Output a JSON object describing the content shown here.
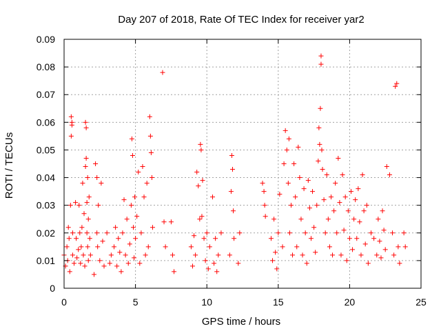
{
  "chart_data": {
    "type": "scatter",
    "title": "Day 207 of 2018, Rate Of TEC Index for receiver yar2",
    "xlabel": "GPS time / hours",
    "ylabel": "ROTI / TECUs",
    "xlim": [
      0,
      25
    ],
    "ylim": [
      0,
      0.09
    ],
    "grid": true,
    "marker": "plus",
    "colors": {
      "points": "#ff0000",
      "grid": "#a0a0a0",
      "frame": "#000000"
    },
    "xticks": [
      0,
      5,
      10,
      15,
      20,
      25
    ],
    "xtick_labels": [
      "0",
      "5",
      "10",
      "15",
      "20",
      "25"
    ],
    "yticks": [
      0,
      0.01,
      0.02,
      0.03,
      0.04,
      0.05,
      0.06,
      0.07,
      0.08,
      0.09
    ],
    "ytick_labels": [
      "0",
      "0.01",
      "0.02",
      "0.03",
      "0.04",
      "0.05",
      "0.06",
      "0.07",
      "0.08",
      "0.09"
    ],
    "x": [
      0.0,
      0.1,
      0.2,
      0.25,
      0.3,
      0.35,
      0.4,
      0.45,
      0.5,
      0.5,
      0.55,
      0.55,
      0.6,
      0.6,
      0.7,
      0.8,
      0.85,
      0.9,
      1.0,
      1.05,
      1.1,
      1.15,
      1.2,
      1.25,
      1.3,
      1.35,
      1.4,
      1.45,
      1.5,
      1.5,
      1.55,
      1.55,
      1.6,
      1.6,
      1.65,
      1.65,
      1.7,
      1.7,
      1.75,
      1.8,
      1.85,
      2.1,
      2.2,
      2.3,
      2.3,
      2.35,
      2.4,
      2.5,
      2.6,
      2.7,
      2.8,
      3.0,
      3.2,
      3.3,
      3.5,
      3.6,
      3.7,
      3.8,
      3.9,
      4.0,
      4.1,
      4.2,
      4.3,
      4.4,
      4.5,
      4.6,
      4.7,
      4.75,
      4.8,
      4.85,
      4.9,
      4.95,
      5.0,
      5.1,
      5.2,
      5.3,
      5.4,
      5.5,
      5.6,
      5.7,
      5.8,
      5.9,
      6.0,
      6.05,
      6.1,
      6.15,
      6.2,
      6.9,
      7.0,
      7.1,
      7.5,
      7.6,
      7.7,
      8.9,
      9.0,
      9.1,
      9.2,
      9.3,
      9.4,
      9.5,
      9.55,
      9.6,
      9.65,
      9.7,
      9.8,
      9.9,
      10.0,
      10.1,
      10.2,
      10.4,
      10.5,
      10.6,
      10.7,
      10.8,
      11.0,
      11.6,
      11.7,
      11.75,
      11.8,
      11.85,
      11.9,
      12.2,
      12.3,
      13.9,
      14.0,
      14.05,
      14.1,
      14.5,
      14.6,
      14.7,
      14.8,
      14.9,
      15.0,
      15.1,
      15.3,
      15.4,
      15.5,
      15.6,
      15.7,
      15.75,
      15.8,
      15.9,
      16.0,
      16.1,
      16.2,
      16.3,
      16.4,
      16.5,
      16.6,
      16.7,
      16.8,
      16.9,
      17.0,
      17.1,
      17.2,
      17.3,
      17.4,
      17.5,
      17.6,
      17.7,
      17.8,
      17.85,
      17.9,
      17.95,
      18.0,
      18.0,
      18.05,
      18.1,
      18.2,
      18.3,
      18.4,
      18.5,
      18.6,
      18.7,
      18.8,
      18.9,
      19.0,
      19.1,
      19.2,
      19.3,
      19.4,
      19.5,
      19.6,
      19.7,
      19.8,
      19.9,
      20.0,
      20.1,
      20.2,
      20.3,
      20.4,
      20.5,
      20.6,
      20.7,
      20.8,
      20.9,
      21.0,
      21.1,
      21.2,
      21.3,
      21.5,
      21.7,
      21.9,
      22.0,
      22.1,
      22.2,
      22.3,
      22.4,
      22.5,
      22.6,
      22.8,
      23.0,
      23.1,
      23.2,
      23.3,
      23.4,
      23.5,
      23.8,
      23.9
    ],
    "y": [
      0.012,
      0.008,
      0.015,
      0.01,
      0.022,
      0.018,
      0.006,
      0.03,
      0.055,
      0.062,
      0.059,
      0.06,
      0.02,
      0.012,
      0.009,
      0.031,
      0.018,
      0.011,
      0.014,
      0.03,
      0.02,
      0.009,
      0.015,
      0.022,
      0.038,
      0.012,
      0.027,
      0.008,
      0.044,
      0.06,
      0.058,
      0.047,
      0.02,
      0.031,
      0.015,
      0.04,
      0.025,
      0.01,
      0.033,
      0.018,
      0.012,
      0.005,
      0.045,
      0.02,
      0.04,
      0.015,
      0.03,
      0.01,
      0.038,
      0.017,
      0.008,
      0.02,
      0.009,
      0.012,
      0.015,
      0.022,
      0.008,
      0.018,
      0.013,
      0.006,
      0.02,
      0.032,
      0.012,
      0.025,
      0.009,
      0.016,
      0.03,
      0.054,
      0.048,
      0.022,
      0.011,
      0.033,
      0.018,
      0.026,
      0.042,
      0.009,
      0.02,
      0.044,
      0.033,
      0.012,
      0.038,
      0.015,
      0.062,
      0.055,
      0.049,
      0.04,
      0.022,
      0.078,
      0.024,
      0.015,
      0.024,
      0.012,
      0.006,
      0.015,
      0.008,
      0.019,
      0.012,
      0.042,
      0.037,
      0.025,
      0.052,
      0.05,
      0.026,
      0.039,
      0.018,
      0.01,
      0.02,
      0.007,
      0.015,
      0.033,
      0.009,
      0.018,
      0.006,
      0.012,
      0.02,
      0.012,
      0.035,
      0.048,
      0.043,
      0.028,
      0.018,
      0.009,
      0.02,
      0.038,
      0.035,
      0.03,
      0.026,
      0.018,
      0.01,
      0.025,
      0.013,
      0.007,
      0.02,
      0.034,
      0.015,
      0.045,
      0.057,
      0.05,
      0.038,
      0.054,
      0.02,
      0.03,
      0.012,
      0.045,
      0.033,
      0.015,
      0.051,
      0.04,
      0.025,
      0.012,
      0.036,
      0.02,
      0.009,
      0.039,
      0.029,
      0.018,
      0.035,
      0.022,
      0.013,
      0.03,
      0.046,
      0.058,
      0.052,
      0.065,
      0.084,
      0.081,
      0.05,
      0.043,
      0.032,
      0.02,
      0.041,
      0.025,
      0.015,
      0.033,
      0.012,
      0.028,
      0.038,
      0.02,
      0.047,
      0.031,
      0.012,
      0.041,
      0.021,
      0.033,
      0.01,
      0.028,
      0.018,
      0.035,
      0.014,
      0.025,
      0.032,
      0.018,
      0.036,
      0.024,
      0.012,
      0.041,
      0.028,
      0.016,
      0.03,
      0.009,
      0.02,
      0.018,
      0.012,
      0.025,
      0.017,
      0.011,
      0.028,
      0.021,
      0.014,
      0.044,
      0.041,
      0.02,
      0.012,
      0.073,
      0.074,
      0.015,
      0.009,
      0.02,
      0.015
    ]
  }
}
